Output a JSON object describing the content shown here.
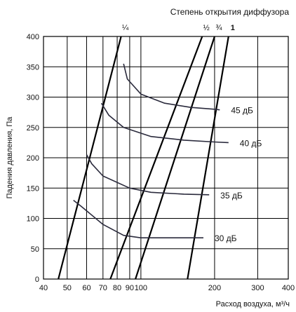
{
  "chart_data": {
    "type": "line",
    "title": "Степень открытия диффузора",
    "xlabel": "Расход воздуха, м³/ч",
    "ylabel": "Падения давления, Па",
    "x_scale": "log",
    "xlim": [
      40,
      400
    ],
    "ylim": [
      0,
      400
    ],
    "x_ticks": [
      40,
      50,
      60,
      70,
      80,
      90,
      100,
      200,
      300,
      400
    ],
    "y_ticks": [
      0,
      50,
      100,
      150,
      200,
      250,
      300,
      350,
      400
    ],
    "grid": true,
    "series": [
      {
        "name": "¼",
        "points": [
          [
            46,
            0
          ],
          [
            83,
            400
          ]
        ]
      },
      {
        "name": "½",
        "points": [
          [
            75,
            0
          ],
          [
            178,
            400
          ]
        ]
      },
      {
        "name": "¾",
        "points": [
          [
            95,
            0
          ],
          [
            200,
            400
          ]
        ]
      },
      {
        "name": "1",
        "points": [
          [
            155,
            0
          ],
          [
            228,
            400
          ]
        ]
      },
      {
        "name": "45 дБ",
        "points": [
          [
            85,
            355
          ],
          [
            88,
            330
          ],
          [
            100,
            305
          ],
          [
            125,
            290
          ],
          [
            160,
            283
          ],
          [
            200,
            280
          ],
          [
            210,
            279
          ]
        ]
      },
      {
        "name": "40 дБ",
        "points": [
          [
            69,
            290
          ],
          [
            74,
            270
          ],
          [
            85,
            250
          ],
          [
            110,
            235
          ],
          [
            150,
            229
          ],
          [
            200,
            226
          ],
          [
            228,
            225
          ]
        ]
      },
      {
        "name": "35 дБ",
        "points": [
          [
            60,
            205
          ],
          [
            63,
            190
          ],
          [
            70,
            170
          ],
          [
            90,
            150
          ],
          [
            110,
            143
          ],
          [
            150,
            140
          ],
          [
            190,
            139
          ]
        ]
      },
      {
        "name": "30 дБ",
        "points": [
          [
            53,
            130
          ],
          [
            57,
            120
          ],
          [
            70,
            90
          ],
          [
            85,
            72
          ],
          [
            100,
            68
          ],
          [
            150,
            68
          ],
          [
            180,
            68
          ]
        ]
      }
    ]
  }
}
